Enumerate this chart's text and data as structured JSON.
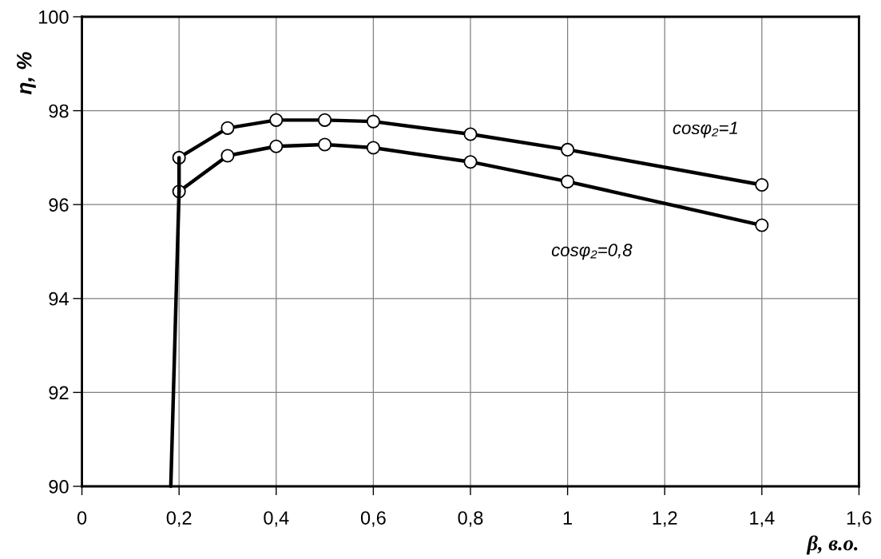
{
  "chart_data": {
    "type": "line",
    "xlabel": "β, в.о.",
    "ylabel": "η, %",
    "xlim": [
      0,
      1.6
    ],
    "ylim": [
      90,
      100
    ],
    "xticks": [
      0,
      {
        "value": 0.2,
        "label": "0,2"
      },
      {
        "value": 0.4,
        "label": "0,4"
      },
      {
        "value": 0.6,
        "label": "0,6"
      },
      {
        "value": 0.8,
        "label": "0,8"
      },
      1,
      {
        "value": 1.2,
        "label": "1,2"
      },
      {
        "value": 1.4,
        "label": "1,4"
      },
      {
        "value": 1.6,
        "label": "1,6"
      }
    ],
    "yticks": [
      90,
      92,
      94,
      96,
      98,
      100
    ],
    "grid": true,
    "marker": "circle",
    "line_style": "solid",
    "series": [
      {
        "name": "cosφ₂=1",
        "color": "#000000",
        "x": [
          0.2,
          0.3,
          0.4,
          0.5,
          0.6,
          0.8,
          1.0,
          1.4
        ],
        "values": [
          97.0,
          97.63,
          97.8,
          97.8,
          97.77,
          97.5,
          97.17,
          96.42
        ]
      },
      {
        "name": "cosφ₂=0,8",
        "color": "#000000",
        "x": [
          0.2,
          0.3,
          0.4,
          0.5,
          0.6,
          0.8,
          1.0,
          1.4
        ],
        "values": [
          96.28,
          97.04,
          97.24,
          97.28,
          97.21,
          96.91,
          96.49,
          95.56
        ]
      },
      {
        "color": "#000000",
        "marker": "none",
        "x": [
          0.2,
          0.2
        ],
        "values": [
          97.0,
          96.28
        ]
      },
      {
        "color": "#000000",
        "marker": "none",
        "x": [
          0.2,
          0.183
        ],
        "values": [
          96.28,
          90.0
        ]
      }
    ]
  }
}
